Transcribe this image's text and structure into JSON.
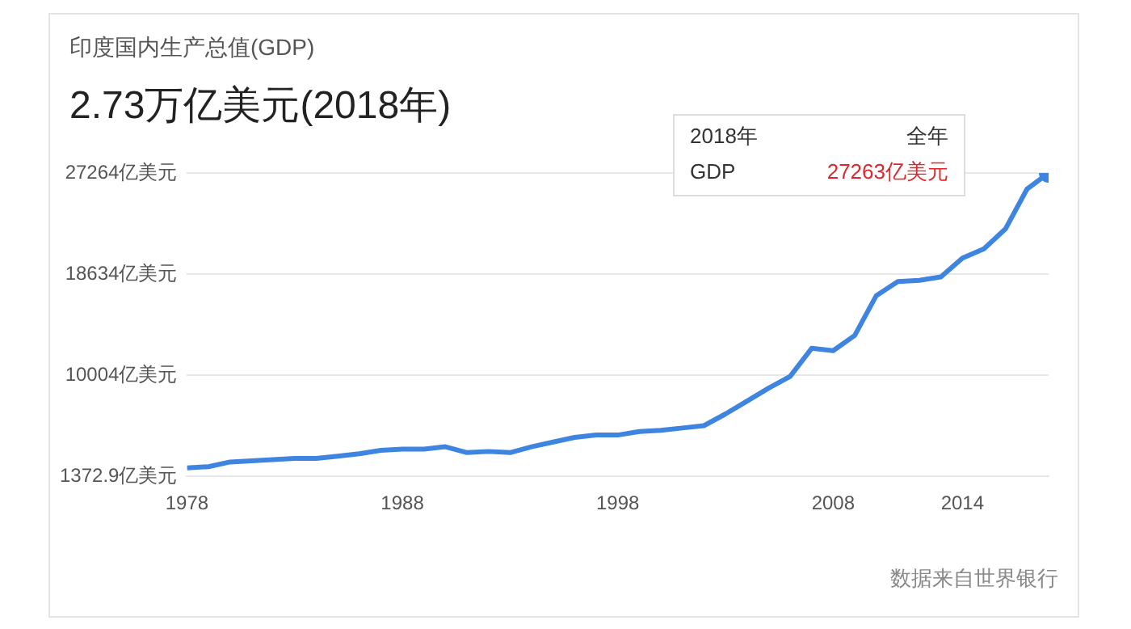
{
  "chart_data": {
    "type": "line",
    "title": "印度国内生产总值(GDP)",
    "subtitle": "2.73万亿美元(2018年)",
    "x": [
      1978,
      1979,
      1980,
      1981,
      1982,
      1983,
      1984,
      1985,
      1986,
      1987,
      1988,
      1989,
      1990,
      1991,
      1992,
      1993,
      1994,
      1995,
      1996,
      1997,
      1998,
      1999,
      2000,
      2001,
      2002,
      2003,
      2004,
      2005,
      2006,
      2007,
      2008,
      2009,
      2010,
      2011,
      2012,
      2013,
      2014,
      2015,
      2016,
      2017,
      2018
    ],
    "series": [
      {
        "color": "#3d85e0",
        "values": [
          2100,
          2200,
          2600,
          2700,
          2800,
          2900,
          2900,
          3100,
          3300,
          3600,
          3700,
          3700,
          3900,
          3400,
          3500,
          3400,
          3900,
          4300,
          4700,
          4900,
          4900,
          5200,
          5300,
          5500,
          5700,
          6700,
          7800,
          8900,
          9900,
          12300,
          12100,
          13400,
          16800,
          18000,
          18100,
          18400,
          20000,
          20800,
          22500,
          25900,
          27263
        ]
      }
    ],
    "xlim": [
      1978,
      2018
    ],
    "xticks": [
      1978,
      1988,
      1998,
      2008,
      2014
    ],
    "ylim": [
      1372.9,
      27264
    ],
    "yticks": [
      {
        "value": 1372.9,
        "label": "1372.9亿美元"
      },
      {
        "value": 10004,
        "label": "10004亿美元"
      },
      {
        "value": 18634,
        "label": "18634亿美元"
      },
      {
        "value": 27264,
        "label": "27264亿美元"
      }
    ],
    "grid": "y",
    "legend": false,
    "line_style": "solid",
    "annotations": [
      "2018年",
      "全年",
      "GDP",
      "27263亿美元",
      "数据来自世界银行"
    ]
  }
}
